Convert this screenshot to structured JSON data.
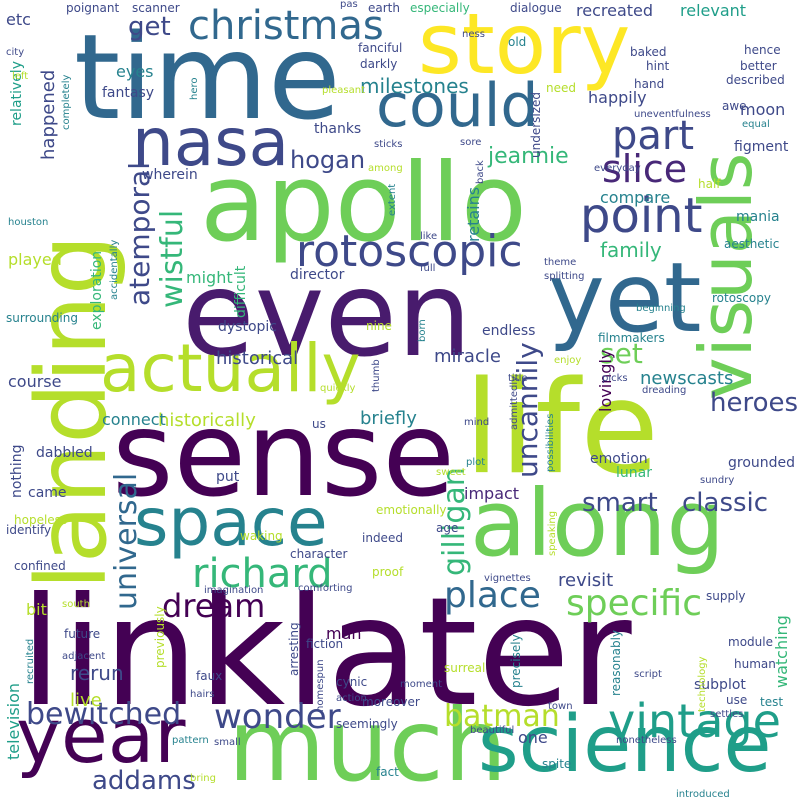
{
  "palette": [
    "#440154",
    "#482878",
    "#3e4989",
    "#31688e",
    "#26828e",
    "#1f9e89",
    "#35b779",
    "#6ece58",
    "#b5de2b",
    "#fde725"
  ],
  "words": [
    {
      "text": "linklater",
      "c": "#440154"
    },
    {
      "text": "sense",
      "c": "#440154"
    },
    {
      "text": "even",
      "c": "#481b6d"
    },
    {
      "text": "life",
      "c": "#b5de2b"
    },
    {
      "text": "time",
      "c": "#31688e"
    },
    {
      "text": "apollo",
      "c": "#6ece58"
    },
    {
      "text": "much",
      "c": "#6ece58"
    },
    {
      "text": "landing",
      "c": "#b5de2b"
    },
    {
      "text": "story",
      "c": "#fde725"
    },
    {
      "text": "along",
      "c": "#6ece58"
    },
    {
      "text": "yet",
      "c": "#31688e"
    },
    {
      "text": "science",
      "c": "#1f9e89"
    },
    {
      "text": "year",
      "c": "#440154"
    },
    {
      "text": "space",
      "c": "#26828e"
    },
    {
      "text": "visuals",
      "c": "#6ece58"
    },
    {
      "text": "actually",
      "c": "#b5de2b"
    },
    {
      "text": "nasa",
      "c": "#3e4989"
    },
    {
      "text": "could",
      "c": "#31688e"
    },
    {
      "text": "point",
      "c": "#3e4989"
    },
    {
      "text": "rotoscopic",
      "c": "#3e4989"
    },
    {
      "text": "vintage",
      "c": "#1f9e89"
    },
    {
      "text": "wonder",
      "c": "#3e4989"
    },
    {
      "text": "christmas",
      "c": "#31688e"
    },
    {
      "text": "part",
      "c": "#3e4989"
    },
    {
      "text": "slice",
      "c": "#482878"
    },
    {
      "text": "richard",
      "c": "#35b779"
    },
    {
      "text": "specific",
      "c": "#6ece58"
    },
    {
      "text": "bewitched",
      "c": "#3e4989"
    },
    {
      "text": "place",
      "c": "#31688e"
    },
    {
      "text": "batman",
      "c": "#b5de2b"
    },
    {
      "text": "dream",
      "c": "#440154"
    },
    {
      "text": "universal",
      "c": "#31688e"
    },
    {
      "text": "gilligan",
      "c": "#35b779"
    },
    {
      "text": "uncannily",
      "c": "#3e4989"
    },
    {
      "text": "wistful",
      "c": "#35b779"
    },
    {
      "text": "atemporal",
      "c": "#3e4989"
    },
    {
      "text": "smart",
      "c": "#3e4989"
    },
    {
      "text": "classic",
      "c": "#3e4989"
    },
    {
      "text": "heroes",
      "c": "#3e4989"
    },
    {
      "text": "addams",
      "c": "#3e4989"
    },
    {
      "text": "set",
      "c": "#6ece58"
    },
    {
      "text": "hogan",
      "c": "#3e4989"
    },
    {
      "text": "get",
      "c": "#3e4989"
    },
    {
      "text": "milestones",
      "c": "#26828e"
    },
    {
      "text": "jeannie",
      "c": "#35b779"
    },
    {
      "text": "family",
      "c": "#35b779"
    },
    {
      "text": "historical",
      "c": "#3e4989"
    },
    {
      "text": "historically",
      "c": "#b5de2b"
    },
    {
      "text": "newscasts",
      "c": "#26828e"
    },
    {
      "text": "miracle",
      "c": "#3e4989"
    },
    {
      "text": "revisit",
      "c": "#3e4989"
    },
    {
      "text": "briefly",
      "c": "#26828e"
    },
    {
      "text": "connect",
      "c": "#26828e"
    },
    {
      "text": "impact",
      "c": "#482878"
    },
    {
      "text": "happily",
      "c": "#3e4989"
    },
    {
      "text": "recreated",
      "c": "#3e4989"
    },
    {
      "text": "relevant",
      "c": "#1f9e89"
    },
    {
      "text": "rerun",
      "c": "#3e4989"
    },
    {
      "text": "live",
      "c": "#b5de2b"
    },
    {
      "text": "television",
      "c": "#1f9e89"
    },
    {
      "text": "watching",
      "c": "#35b779"
    },
    {
      "text": "one",
      "c": "#3e4989"
    },
    {
      "text": "course",
      "c": "#3e4989"
    },
    {
      "text": "played",
      "c": "#b5de2b"
    },
    {
      "text": "might",
      "c": "#35b779"
    },
    {
      "text": "compare",
      "c": "#26828e"
    },
    {
      "text": "eyes",
      "c": "#26828e"
    },
    {
      "text": "moon",
      "c": "#3e4989"
    },
    {
      "text": "retains",
      "c": "#26828e"
    },
    {
      "text": "happened",
      "c": "#3e4989"
    },
    {
      "text": "exploration",
      "c": "#35b779"
    },
    {
      "text": "endless",
      "c": "#3e4989"
    },
    {
      "text": "lovingly",
      "c": "#440154"
    },
    {
      "text": "man",
      "c": "#440154"
    },
    {
      "text": "bit",
      "c": "#b5de2b"
    },
    {
      "text": "etc",
      "c": "#3e4989"
    },
    {
      "text": "came",
      "c": "#3e4989"
    },
    {
      "text": "director",
      "c": "#3e4989"
    },
    {
      "text": "difficult",
      "c": "#35b779"
    },
    {
      "text": "dystopic",
      "c": "#3e4989"
    },
    {
      "text": "relatively",
      "c": "#1f9e89"
    },
    {
      "text": "nothing",
      "c": "#3e4989"
    },
    {
      "text": "dabbled",
      "c": "#3e4989"
    },
    {
      "text": "put",
      "c": "#3e4989"
    },
    {
      "text": "emotion",
      "c": "#3e4989"
    },
    {
      "text": "lunar",
      "c": "#35b779"
    },
    {
      "text": "grounded",
      "c": "#3e4989"
    },
    {
      "text": "subplot",
      "c": "#3e4989"
    },
    {
      "text": "wherein",
      "c": "#3e4989"
    },
    {
      "text": "fantasy",
      "c": "#3e4989"
    },
    {
      "text": "thanks",
      "c": "#3e4989"
    },
    {
      "text": "undersized",
      "c": "#3e4989"
    },
    {
      "text": "figment",
      "c": "#3e4989"
    },
    {
      "text": "mania",
      "c": "#26828e"
    },
    {
      "text": "aesthetic",
      "c": "#26828e"
    },
    {
      "text": "rotoscopy",
      "c": "#26828e"
    },
    {
      "text": "filmmakers",
      "c": "#26828e"
    },
    {
      "text": "emotionally",
      "c": "#b5de2b"
    },
    {
      "text": "age",
      "c": "#3e4989"
    },
    {
      "text": "identify",
      "c": "#3e4989"
    },
    {
      "text": "confined",
      "c": "#3e4989"
    },
    {
      "text": "indeed",
      "c": "#3e4989"
    },
    {
      "text": "character",
      "c": "#3e4989"
    },
    {
      "text": "proof",
      "c": "#b5de2b"
    },
    {
      "text": "fiction",
      "c": "#3e4989"
    },
    {
      "text": "cynic",
      "c": "#3e4989"
    },
    {
      "text": "moreover",
      "c": "#3e4989"
    },
    {
      "text": "seemingly",
      "c": "#3e4989"
    },
    {
      "text": "human",
      "c": "#3e4989"
    },
    {
      "text": "use",
      "c": "#3e4989"
    },
    {
      "text": "test",
      "c": "#26828e"
    },
    {
      "text": "future",
      "c": "#3e4989"
    },
    {
      "text": "previously",
      "c": "#b5de2b"
    },
    {
      "text": "arresting",
      "c": "#3e4989"
    },
    {
      "text": "precisely",
      "c": "#26828e"
    },
    {
      "text": "reasonably",
      "c": "#26828e"
    },
    {
      "text": "supply",
      "c": "#3e4989"
    },
    {
      "text": "module",
      "c": "#3e4989"
    },
    {
      "text": "vignettes",
      "c": "#3e4989"
    },
    {
      "text": "surreal",
      "c": "#b5de2b"
    },
    {
      "text": "comforting",
      "c": "#3e4989"
    },
    {
      "text": "spite",
      "c": "#26828e"
    },
    {
      "text": "fact",
      "c": "#26828e"
    },
    {
      "text": "pattern",
      "c": "#26828e"
    },
    {
      "text": "bring",
      "c": "#b5de2b"
    },
    {
      "text": "introduced",
      "c": "#26828e"
    },
    {
      "text": "nonetheless",
      "c": "#3e4989"
    },
    {
      "text": "beautiful",
      "c": "#3e4989"
    },
    {
      "text": "small",
      "c": "#3e4989"
    },
    {
      "text": "hopeless",
      "c": "#b5de2b"
    },
    {
      "text": "surrounding",
      "c": "#26828e"
    },
    {
      "text": "waking",
      "c": "#b5de2b"
    },
    {
      "text": "scanner",
      "c": "#3e4989"
    },
    {
      "text": "poignant",
      "c": "#3e4989"
    },
    {
      "text": "earth",
      "c": "#3e4989"
    },
    {
      "text": "especially",
      "c": "#35b779"
    },
    {
      "text": "dialogue",
      "c": "#3e4989"
    },
    {
      "text": "hence",
      "c": "#3e4989"
    },
    {
      "text": "better",
      "c": "#3e4989"
    },
    {
      "text": "described",
      "c": "#3e4989"
    },
    {
      "text": "baked",
      "c": "#3e4989"
    },
    {
      "text": "hand",
      "c": "#3e4989"
    },
    {
      "text": "awe",
      "c": "#3e4989"
    },
    {
      "text": "equal",
      "c": "#26828e"
    },
    {
      "text": "uneventfulness",
      "c": "#3e4989"
    },
    {
      "text": "everyday",
      "c": "#3e4989"
    },
    {
      "text": "half",
      "c": "#b5de2b"
    },
    {
      "text": "settles",
      "c": "#3e4989"
    },
    {
      "text": "fanciful",
      "c": "#3e4989"
    },
    {
      "text": "darkly",
      "c": "#3e4989"
    },
    {
      "text": "pleasant",
      "c": "#b5de2b"
    },
    {
      "text": "need",
      "c": "#b5de2b"
    },
    {
      "text": "hint",
      "c": "#3e4989"
    },
    {
      "text": "old",
      "c": "#26828e"
    },
    {
      "text": "ness",
      "c": "#3e4989"
    },
    {
      "text": "pas",
      "c": "#3e4989"
    },
    {
      "text": "hero",
      "c": "#26828e"
    },
    {
      "text": "city",
      "c": "#3e4989"
    },
    {
      "text": "left",
      "c": "#b5de2b"
    },
    {
      "text": "completely",
      "c": "#26828e"
    },
    {
      "text": "sticks",
      "c": "#3e4989"
    },
    {
      "text": "among",
      "c": "#b5de2b"
    },
    {
      "text": "sore",
      "c": "#3e4989"
    },
    {
      "text": "back",
      "c": "#3e4989"
    },
    {
      "text": "extent",
      "c": "#26828e"
    },
    {
      "text": "houston",
      "c": "#26828e"
    },
    {
      "text": "accidentally",
      "c": "#26828e"
    },
    {
      "text": "like",
      "c": "#3e4989"
    },
    {
      "text": "full",
      "c": "#3e4989"
    },
    {
      "text": "theme",
      "c": "#3e4989"
    },
    {
      "text": "splitting",
      "c": "#3e4989"
    },
    {
      "text": "beginning",
      "c": "#26828e"
    },
    {
      "text": "quickly",
      "c": "#b5de2b"
    },
    {
      "text": "nine",
      "c": "#b5de2b"
    },
    {
      "text": "born",
      "c": "#26828e"
    },
    {
      "text": "thumb",
      "c": "#3e4989"
    },
    {
      "text": "us",
      "c": "#3e4989"
    },
    {
      "text": "mind",
      "c": "#3e4989"
    },
    {
      "text": "admittedly",
      "c": "#3e4989"
    },
    {
      "text": "possibilities",
      "c": "#26828e"
    },
    {
      "text": "enjoy",
      "c": "#b5de2b"
    },
    {
      "text": "picks",
      "c": "#3e4989"
    },
    {
      "text": "dreading",
      "c": "#3e4989"
    },
    {
      "text": "title",
      "c": "#3e4989"
    },
    {
      "text": "plot",
      "c": "#26828e"
    },
    {
      "text": "sweet",
      "c": "#b5de2b"
    },
    {
      "text": "sundry",
      "c": "#3e4989"
    },
    {
      "text": "speaking",
      "c": "#b5de2b"
    },
    {
      "text": "imagination",
      "c": "#3e4989"
    },
    {
      "text": "south",
      "c": "#b5de2b"
    },
    {
      "text": "recruited",
      "c": "#26828e"
    },
    {
      "text": "adjacent",
      "c": "#3e4989"
    },
    {
      "text": "faux",
      "c": "#3e4989"
    },
    {
      "text": "hairs",
      "c": "#3e4989"
    },
    {
      "text": "homespun",
      "c": "#3e4989"
    },
    {
      "text": "action",
      "c": "#3e4989"
    },
    {
      "text": "moment",
      "c": "#3e4989"
    },
    {
      "text": "town",
      "c": "#3e4989"
    },
    {
      "text": "script",
      "c": "#3e4989"
    },
    {
      "text": "technology",
      "c": "#b5de2b"
    }
  ]
}
